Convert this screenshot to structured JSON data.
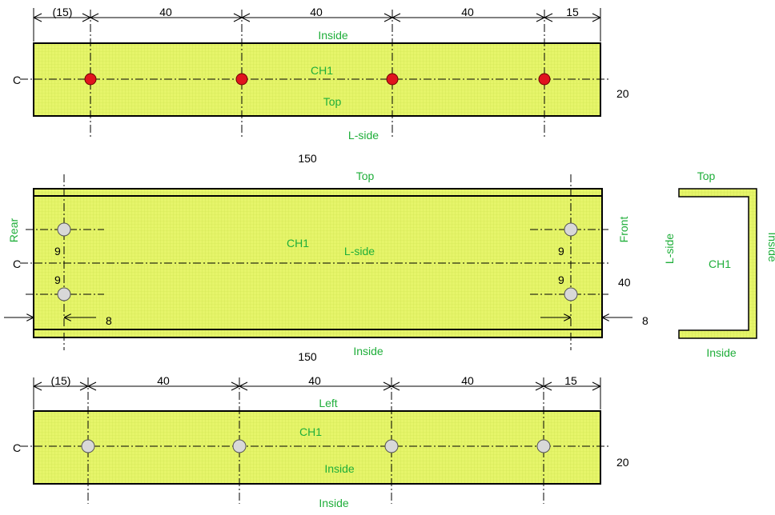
{
  "colors": {
    "plate_fill": "#e6f56a",
    "grid_line": "#c9e04a",
    "label_green": "#1fae3a",
    "hole_red": "#e0141e",
    "hole_grey": "#d8d8d8"
  },
  "top_view": {
    "spacing": [
      "(15)",
      "40",
      "40",
      "40",
      "15"
    ],
    "label_above": "Inside",
    "part": "CH1",
    "face": "Top",
    "label_below": "L-side",
    "center_mark": "C",
    "height": "20",
    "overall_length": "150"
  },
  "side_view": {
    "label_above": "Top",
    "label_left": "Rear",
    "label_right": "Front",
    "part": "CH1",
    "face": "L-side",
    "center_mark": "C",
    "hole_offsets": [
      "9",
      "9",
      "9",
      "9"
    ],
    "height": "40",
    "edge_left": "8",
    "edge_right": "8",
    "label_below": "Inside",
    "overall_length": "150"
  },
  "section": {
    "top": "Top",
    "left": "L-side",
    "right": "Inside",
    "part": "CH1",
    "bottom": "Inside"
  },
  "bottom_view": {
    "spacing": [
      "(15)",
      "40",
      "40",
      "40",
      "15"
    ],
    "label_above": "Left",
    "part": "CH1",
    "face": "Inside",
    "label_below": "Inside",
    "center_mark": "C",
    "height": "20"
  }
}
